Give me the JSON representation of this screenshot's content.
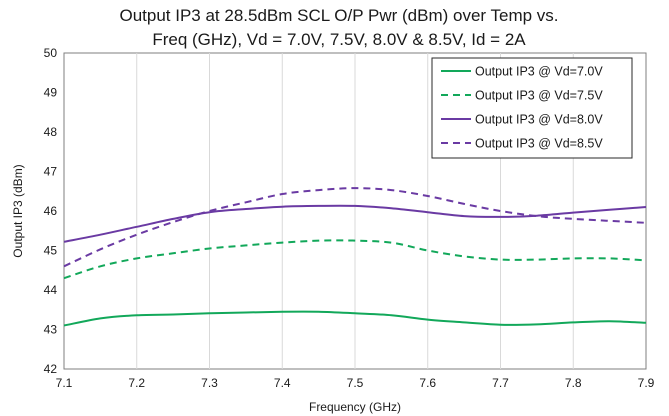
{
  "chart_data": {
    "type": "line",
    "title_line1": "Output IP3 at 28.5dBm SCL  O/P Pwr (dBm) over Temp vs.",
    "title_line2": "Freq (GHz), Vd = 7.0V, 7.5V, 8.0V & 8.5V, Id = 2A",
    "xlabel": "Frequency (GHz)",
    "ylabel": "Output IP3 (dBm)",
    "xlim": [
      7.1,
      7.9
    ],
    "ylim": [
      42,
      50
    ],
    "x_ticks": [
      "7.1",
      "7.2",
      "7.3",
      "7.4",
      "7.5",
      "7.6",
      "7.7",
      "7.8",
      "7.9"
    ],
    "y_ticks": [
      "42",
      "43",
      "44",
      "45",
      "46",
      "47",
      "48",
      "49",
      "50"
    ],
    "grid": "vertical",
    "legend_position": "top-right",
    "x": [
      7.1,
      7.15,
      7.2,
      7.25,
      7.3,
      7.35,
      7.4,
      7.45,
      7.5,
      7.55,
      7.6,
      7.65,
      7.7,
      7.75,
      7.8,
      7.85,
      7.9
    ],
    "series": [
      {
        "name": "Output IP3 @ Vd=7.0V",
        "color": "#12a85a",
        "dash": "solid",
        "values": [
          43.1,
          43.28,
          43.36,
          43.38,
          43.41,
          43.43,
          43.45,
          43.45,
          43.41,
          43.36,
          43.25,
          43.18,
          43.12,
          43.13,
          43.18,
          43.21,
          43.17
        ]
      },
      {
        "name": "Output IP3 @ Vd=7.5V",
        "color": "#12a85a",
        "dash": "dashed",
        "values": [
          44.3,
          44.6,
          44.8,
          44.93,
          45.05,
          45.13,
          45.2,
          45.25,
          45.25,
          45.2,
          45.0,
          44.85,
          44.77,
          44.77,
          44.8,
          44.8,
          44.75
        ]
      },
      {
        "name": "Output IP3 @ Vd=8.0V",
        "color": "#6a3aa3",
        "dash": "solid",
        "values": [
          45.22,
          45.4,
          45.6,
          45.8,
          45.97,
          46.05,
          46.11,
          46.13,
          46.13,
          46.07,
          45.97,
          45.87,
          45.85,
          45.88,
          45.96,
          46.03,
          46.1
        ]
      },
      {
        "name": "Output IP3 @ Vd=8.5V",
        "color": "#6a3aa3",
        "dash": "dashed",
        "values": [
          44.6,
          45.03,
          45.4,
          45.72,
          46.0,
          46.22,
          46.43,
          46.53,
          46.58,
          46.53,
          46.38,
          46.18,
          46.0,
          45.87,
          45.8,
          45.75,
          45.7
        ]
      }
    ]
  }
}
